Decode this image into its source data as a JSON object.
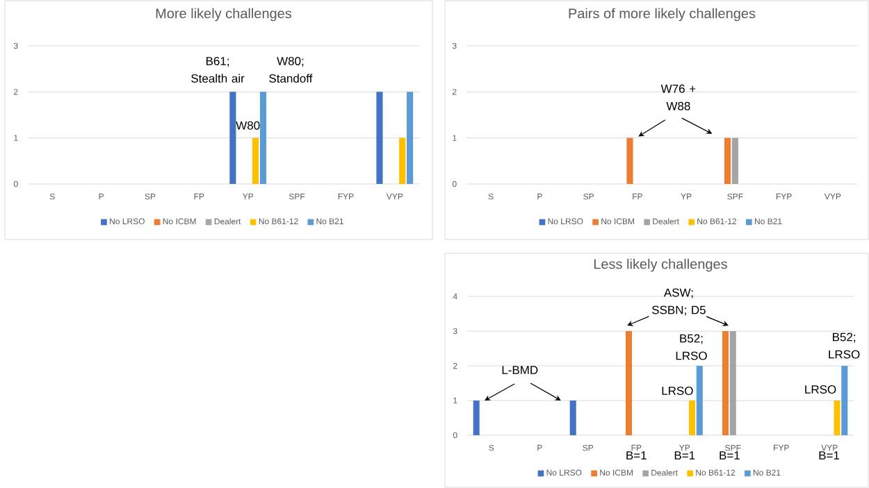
{
  "chart_data": [
    {
      "type": "bar",
      "title": "More likely challenges",
      "categories": [
        "S",
        "P",
        "SP",
        "FP",
        "YP",
        "SPF",
        "FYP",
        "VYP"
      ],
      "ylim": [
        0,
        3
      ],
      "yticks": [
        0,
        1,
        2,
        3
      ],
      "grid": "y",
      "legend": "bottom",
      "series": [
        {
          "name": "No LRSO",
          "color": "#4472c4",
          "values": [
            0,
            0,
            0,
            0,
            2,
            0,
            0,
            2
          ]
        },
        {
          "name": "No ICBM",
          "color": "#ed7d31",
          "values": [
            0,
            0,
            0,
            0,
            0,
            0,
            0,
            0
          ]
        },
        {
          "name": "Dealert",
          "color": "#a5a5a5",
          "values": [
            0,
            0,
            0,
            0,
            0,
            0,
            0,
            0
          ]
        },
        {
          "name": "No B61-12",
          "color": "#ffc000",
          "values": [
            0,
            0,
            0,
            0,
            1,
            0,
            0,
            1
          ]
        },
        {
          "name": "No B21",
          "color": "#5b9bd5",
          "values": [
            0,
            0,
            0,
            0,
            2,
            0,
            0,
            2
          ]
        }
      ],
      "annotations": [
        "B61; Stealth air",
        "W80; Standoff",
        "W80"
      ]
    },
    {
      "type": "bar",
      "title": "Pairs of more likely challenges",
      "categories": [
        "S",
        "P",
        "SP",
        "FP",
        "YP",
        "SPF",
        "FYP",
        "VYP"
      ],
      "ylim": [
        0,
        3
      ],
      "yticks": [
        0,
        1,
        2,
        3
      ],
      "grid": "y",
      "legend": "bottom",
      "series": [
        {
          "name": "No LRSO",
          "color": "#4472c4",
          "values": [
            0,
            0,
            0,
            0,
            0,
            0,
            0,
            0
          ]
        },
        {
          "name": "No ICBM",
          "color": "#ed7d31",
          "values": [
            0,
            0,
            0,
            1,
            0,
            1,
            0,
            0
          ]
        },
        {
          "name": "Dealert",
          "color": "#a5a5a5",
          "values": [
            0,
            0,
            0,
            0,
            0,
            1,
            0,
            0
          ]
        },
        {
          "name": "No B61-12",
          "color": "#ffc000",
          "values": [
            0,
            0,
            0,
            0,
            0,
            0,
            0,
            0
          ]
        },
        {
          "name": "No B21",
          "color": "#5b9bd5",
          "values": [
            0,
            0,
            0,
            0,
            0,
            0,
            0,
            0
          ]
        }
      ],
      "annotations": [
        "W76 + W88"
      ]
    },
    {
      "type": "bar",
      "title": "Less likely challenges",
      "categories": [
        "S",
        "P",
        "SP",
        "FP",
        "YP",
        "SPF",
        "FYP",
        "VYP"
      ],
      "ylim": [
        0,
        4
      ],
      "yticks": [
        0,
        1,
        2,
        3,
        4
      ],
      "grid": "y",
      "legend": "bottom",
      "series": [
        {
          "name": "No LRSO",
          "color": "#4472c4",
          "values": [
            1,
            0,
            1,
            0,
            0,
            0,
            0,
            0
          ]
        },
        {
          "name": "No ICBM",
          "color": "#ed7d31",
          "values": [
            0,
            0,
            0,
            3,
            0,
            3,
            0,
            0
          ]
        },
        {
          "name": "Dealert",
          "color": "#a5a5a5",
          "values": [
            0,
            0,
            0,
            0,
            0,
            3,
            0,
            0
          ]
        },
        {
          "name": "No B61-12",
          "color": "#ffc000",
          "values": [
            0,
            0,
            0,
            0,
            1,
            0,
            0,
            1
          ]
        },
        {
          "name": "No B21",
          "color": "#5b9bd5",
          "values": [
            0,
            0,
            0,
            0,
            2,
            0,
            0,
            2
          ]
        }
      ],
      "annotations": [
        "L-BMD",
        "ASW; SSBN; D5",
        "B52; LRSO",
        "LRSO",
        "B52; LRSO",
        "LRSO",
        "B=1",
        "B=1",
        "B=1",
        "B=1"
      ]
    }
  ]
}
